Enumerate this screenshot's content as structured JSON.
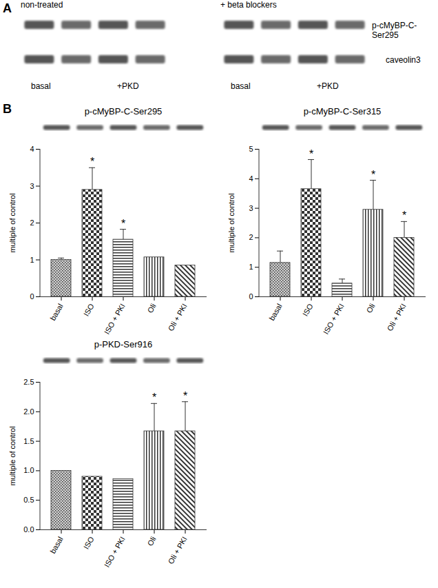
{
  "panel_a": {
    "label": "A",
    "blots": [
      {
        "title": "non-treated",
        "lane_labels": [
          "basal",
          "+PKD"
        ]
      },
      {
        "title": "+ beta blockers",
        "lane_labels": [
          "basal",
          "+PKD"
        ]
      }
    ],
    "rows": [
      "p-cMyBP-C-Ser295",
      "caveolin3"
    ]
  },
  "panel_b_label": "B",
  "chart_data": [
    {
      "type": "bar",
      "title": "p-cMyBP-C-Ser295",
      "ylabel": "multiple of control",
      "categories": [
        "basal",
        "ISO",
        "ISO + PKI",
        "Oli",
        "Oli + PKI"
      ],
      "values": [
        1.0,
        2.9,
        1.55,
        1.07,
        0.85
      ],
      "errors": [
        0.05,
        0.6,
        0.28,
        0,
        0
      ],
      "color": "#333333",
      "ylim": [
        0,
        4
      ],
      "yticks": [
        0,
        1,
        2,
        3,
        4
      ],
      "annotations": [
        {
          "category": "ISO",
          "text": "*"
        },
        {
          "category": "ISO + PKI",
          "text": "*"
        }
      ]
    },
    {
      "type": "bar",
      "title": "p-cMyBP-C-Ser315",
      "ylabel": "multiple of control",
      "categories": [
        "basal",
        "ISO",
        "ISO + PKI",
        "Oli",
        "Oli + PKI"
      ],
      "values": [
        1.15,
        3.65,
        0.45,
        2.95,
        2.0
      ],
      "errors": [
        0.4,
        1.0,
        0.15,
        1.0,
        0.55
      ],
      "color": "#333333",
      "ylim": [
        0,
        5
      ],
      "yticks": [
        0,
        1,
        2,
        3,
        4,
        5
      ],
      "annotations": [
        {
          "category": "ISO",
          "text": "*"
        },
        {
          "category": "Oli",
          "text": "*"
        },
        {
          "category": "Oli + PKI",
          "text": "*"
        }
      ]
    },
    {
      "type": "bar",
      "title": "p-PKD-Ser916",
      "ylabel": "multiple of control",
      "categories": [
        "basal",
        "ISO",
        "ISO + PKI",
        "Oli",
        "Oli + PKI"
      ],
      "values": [
        1.0,
        0.9,
        0.86,
        1.67,
        1.67
      ],
      "errors": [
        0,
        0,
        0,
        0.47,
        0.5
      ],
      "color": "#333333",
      "ylim": [
        0,
        2.5
      ],
      "yticks": [
        {
          "value": 0,
          "label": "0.0"
        },
        0.5,
        {
          "value": 1,
          "label": "1.0"
        },
        1.5,
        {
          "value": 2,
          "label": "2.0"
        },
        2.5
      ],
      "annotations": [
        {
          "category": "Oli",
          "text": "*"
        },
        {
          "category": "Oli + PKI",
          "text": "*"
        }
      ]
    }
  ]
}
